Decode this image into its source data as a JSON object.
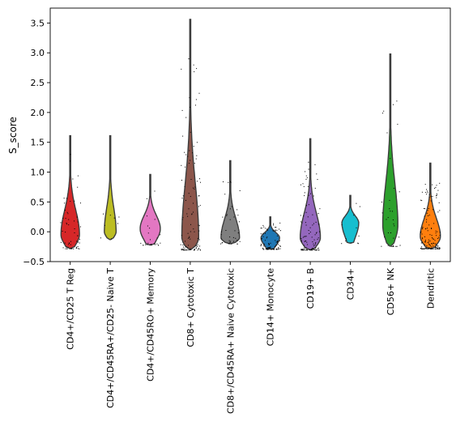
{
  "chart_data": {
    "type": "violin",
    "title": "",
    "xlabel": "",
    "ylabel": "S_score",
    "ylim": [
      -0.5,
      3.75
    ],
    "yticks": [
      -0.5,
      0.0,
      0.5,
      1.0,
      1.5,
      2.0,
      2.5,
      3.0,
      3.5
    ],
    "ytick_labels": [
      "−0.5",
      "0.0",
      "0.5",
      "1.0",
      "1.5",
      "2.0",
      "2.5",
      "3.0",
      "3.5"
    ],
    "categories": [
      "CD4+/CD25 T Reg",
      "CD4+/CD45RA+/CD25- Naive T",
      "CD4+/CD45RO+ Memory",
      "CD8+ Cytotoxic T",
      "CD8+/CD45RA+ Naive Cytotoxic",
      "CD14+ Monocyte",
      "CD19+ B",
      "CD34+",
      "CD56+ NK",
      "Dendritic"
    ],
    "colors": [
      "#d62728",
      "#bcbd22",
      "#e377c2",
      "#8c564b",
      "#7f7f7f",
      "#1f77b4",
      "#9467bd",
      "#17becf",
      "#2ca02c",
      "#ff7f0e"
    ],
    "violins": [
      {
        "min": -0.28,
        "max": 1.61,
        "peak": -0.05,
        "width": 0.55,
        "points": 60
      },
      {
        "min": -0.13,
        "max": 1.61,
        "peak": 0.0,
        "width": 0.35,
        "points": 8
      },
      {
        "min": -0.22,
        "max": 0.96,
        "peak": 0.05,
        "width": 0.6,
        "points": 25
      },
      {
        "min": -0.3,
        "max": 3.56,
        "peak": -0.1,
        "width": 0.5,
        "points": 110
      },
      {
        "min": -0.2,
        "max": 1.19,
        "peak": -0.1,
        "width": 0.55,
        "points": 40
      },
      {
        "min": -0.29,
        "max": 0.25,
        "peak": -0.1,
        "width": 0.55,
        "points": 90
      },
      {
        "min": -0.3,
        "max": 1.56,
        "peak": -0.1,
        "width": 0.6,
        "points": 110
      },
      {
        "min": -0.19,
        "max": 0.61,
        "peak": 0.15,
        "width": 0.5,
        "points": 12
      },
      {
        "min": -0.24,
        "max": 2.98,
        "peak": 0.1,
        "width": 0.45,
        "points": 35
      },
      {
        "min": -0.28,
        "max": 1.15,
        "peak": -0.08,
        "width": 0.6,
        "points": 150
      }
    ]
  }
}
